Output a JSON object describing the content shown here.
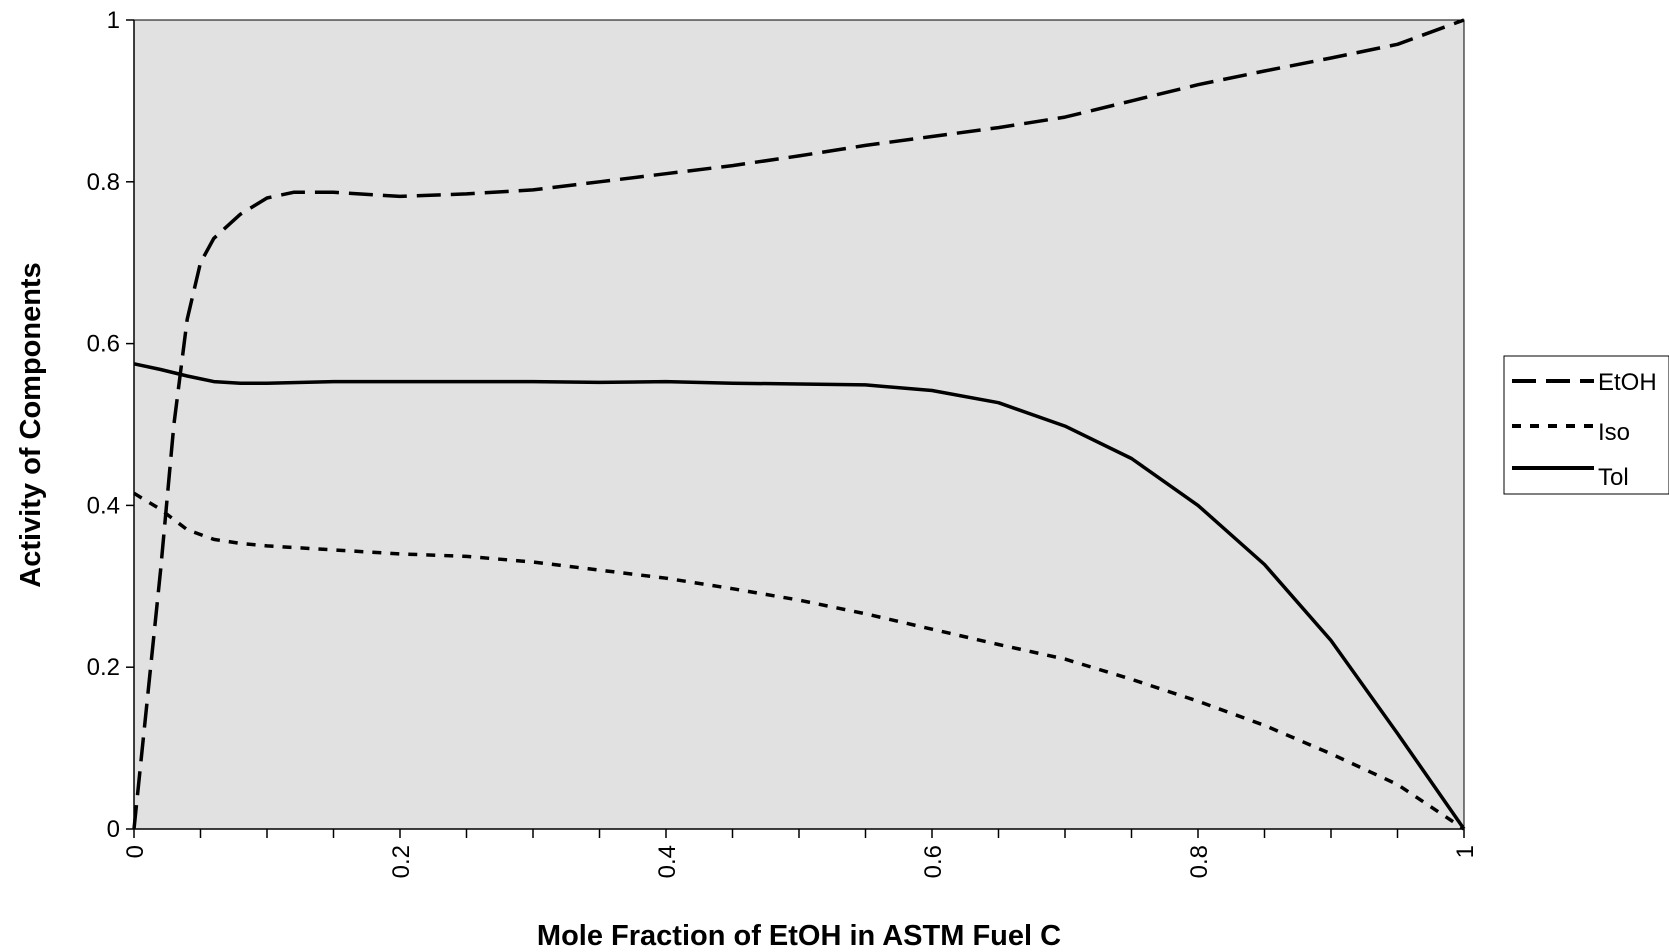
{
  "chart_data": {
    "type": "line",
    "title": "",
    "xlabel": "Mole Fraction of EtOH in ASTM Fuel C",
    "ylabel": "Activity of Components",
    "xlim": [
      0,
      1
    ],
    "ylim": [
      0,
      1
    ],
    "xticks": [
      "0",
      "0.2",
      "0.4",
      "0.6",
      "0.8",
      "1"
    ],
    "yticks": [
      "0",
      "0.2",
      "0.4",
      "0.6",
      "0.8",
      "1"
    ],
    "grid": false,
    "plot_background": "#e1e1e1",
    "legend_position": "right",
    "series": [
      {
        "name": "EtOH",
        "style": "dashed",
        "x": [
          0,
          0.01,
          0.02,
          0.03,
          0.04,
          0.05,
          0.06,
          0.08,
          0.1,
          0.12,
          0.15,
          0.2,
          0.25,
          0.3,
          0.35,
          0.4,
          0.45,
          0.5,
          0.55,
          0.6,
          0.65,
          0.7,
          0.75,
          0.8,
          0.85,
          0.9,
          0.95,
          1.0
        ],
        "y": [
          0,
          0.16,
          0.32,
          0.5,
          0.63,
          0.7,
          0.73,
          0.76,
          0.78,
          0.787,
          0.787,
          0.782,
          0.785,
          0.79,
          0.8,
          0.81,
          0.82,
          0.832,
          0.845,
          0.856,
          0.867,
          0.88,
          0.9,
          0.92,
          0.937,
          0.953,
          0.97,
          1.0
        ]
      },
      {
        "name": "Iso",
        "style": "dotted",
        "x": [
          0,
          0.02,
          0.04,
          0.06,
          0.08,
          0.1,
          0.15,
          0.2,
          0.25,
          0.3,
          0.35,
          0.4,
          0.45,
          0.5,
          0.55,
          0.6,
          0.65,
          0.7,
          0.75,
          0.8,
          0.85,
          0.9,
          0.95,
          1.0
        ],
        "y": [
          0.415,
          0.395,
          0.37,
          0.358,
          0.353,
          0.35,
          0.345,
          0.34,
          0.337,
          0.33,
          0.32,
          0.31,
          0.297,
          0.283,
          0.266,
          0.247,
          0.228,
          0.21,
          0.185,
          0.158,
          0.128,
          0.093,
          0.055,
          0
        ]
      },
      {
        "name": "Tol",
        "style": "solid",
        "x": [
          0,
          0.02,
          0.04,
          0.06,
          0.08,
          0.1,
          0.15,
          0.2,
          0.3,
          0.35,
          0.4,
          0.45,
          0.5,
          0.55,
          0.6,
          0.65,
          0.7,
          0.75,
          0.8,
          0.85,
          0.9,
          0.95,
          1.0
        ],
        "y": [
          0.575,
          0.568,
          0.56,
          0.553,
          0.551,
          0.551,
          0.553,
          0.553,
          0.553,
          0.552,
          0.553,
          0.551,
          0.55,
          0.549,
          0.542,
          0.527,
          0.498,
          0.458,
          0.4,
          0.327,
          0.233,
          0.118,
          0
        ]
      }
    ]
  }
}
